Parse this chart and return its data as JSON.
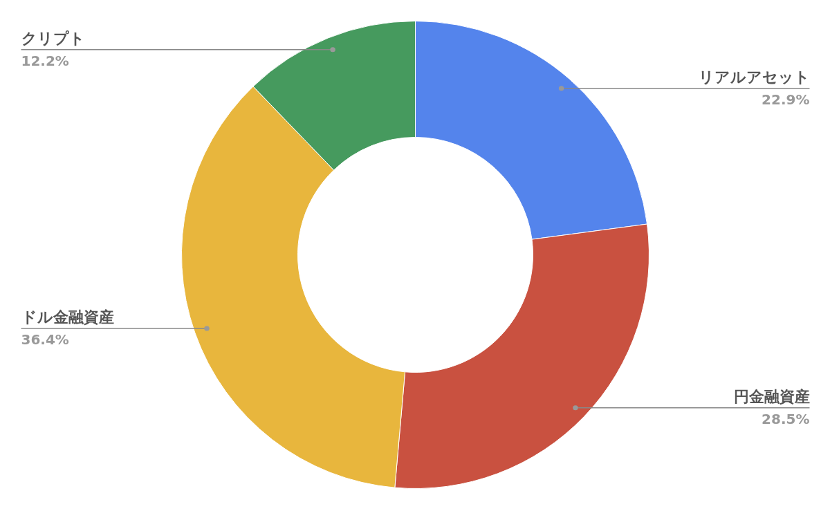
{
  "chart_data": {
    "type": "donut",
    "categories": [
      "リアルアセット",
      "円金融資産",
      "ドル金融資産",
      "クリプト"
    ],
    "values": [
      22.9,
      28.5,
      36.4,
      12.2
    ],
    "colors": [
      "#5484ec",
      "#c95140",
      "#e8b63d",
      "#469a5e"
    ],
    "value_labels": [
      "22.9%",
      "28.5%",
      "36.4%",
      "12.2%"
    ]
  }
}
